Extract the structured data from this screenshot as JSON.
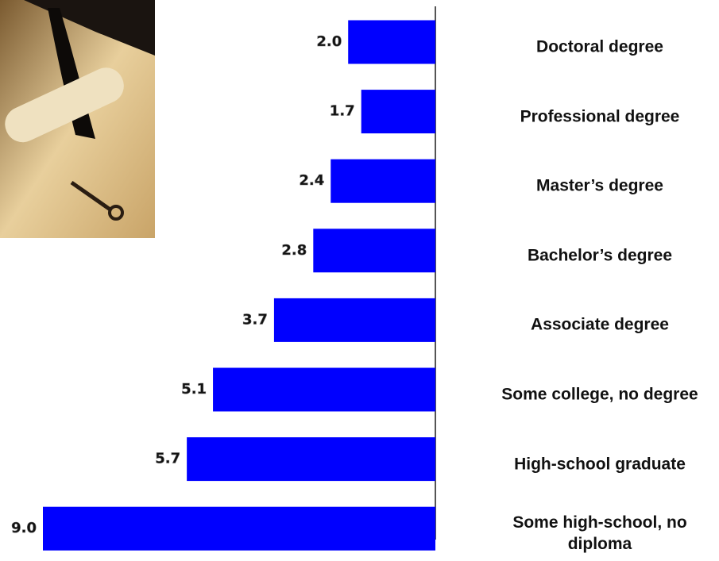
{
  "chart_data": {
    "type": "bar",
    "orientation": "horizontal-left",
    "categories": [
      "Doctoral degree",
      "Professional degree",
      "Master’s degree",
      "Bachelor’s degree",
      "Associate degree",
      "Some college, no degree",
      "High-school graduate",
      "Some high-school, no diploma"
    ],
    "values": [
      2.0,
      1.7,
      2.4,
      2.8,
      3.7,
      5.1,
      5.7,
      9.0
    ],
    "value_labels": [
      "2.0",
      "1.7",
      "2.4",
      "2.8",
      "3.7",
      "5.1",
      "5.7",
      "9.0"
    ],
    "color": "#0000ff",
    "xlim": [
      0,
      9
    ]
  }
}
